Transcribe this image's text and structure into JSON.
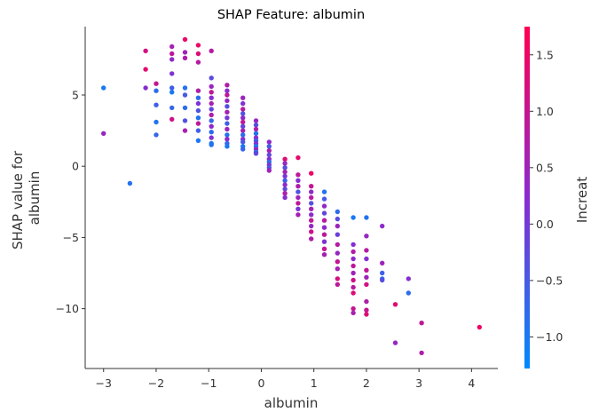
{
  "chart_data": {
    "type": "scatter",
    "title": "SHAP Feature: albumin",
    "xlabel": "albumin",
    "ylabel_lines": [
      "SHAP value for",
      "albumin"
    ],
    "xlim": [
      -3.35,
      4.5
    ],
    "ylim": [
      -14.2,
      9.8
    ],
    "xticks": [
      -3,
      -2,
      -1,
      0,
      1,
      2,
      3,
      4
    ],
    "xtick_labels": [
      "−3",
      "−2",
      "−1",
      "0",
      "1",
      "2",
      "3",
      "4"
    ],
    "yticks": [
      5,
      0,
      -5,
      -10
    ],
    "ytick_labels": [
      "5",
      "0",
      "−5",
      "−10"
    ],
    "grid": false,
    "colorbar": {
      "label": "Increat",
      "range": [
        -1.28,
        1.75
      ],
      "ticks": [
        1.5,
        1.0,
        0.5,
        0.0,
        -0.5,
        -1.0
      ],
      "tick_labels": [
        "1.5",
        "1.0",
        "0.5",
        "0.0",
        "−0.5",
        "−1.0"
      ],
      "color_low": "#008afb",
      "color_mid": "#8a2bd0",
      "color_high": "#ff0052"
    },
    "points": [
      {
        "x": -3.0,
        "y": 5.5,
        "c": -1.0
      },
      {
        "x": -3.0,
        "y": 2.3,
        "c": 0.4
      },
      {
        "x": -2.5,
        "y": -1.2,
        "c": -0.9
      },
      {
        "x": -2.2,
        "y": 8.1,
        "c": 1.2
      },
      {
        "x": -2.2,
        "y": 6.8,
        "c": 1.4
      },
      {
        "x": -2.2,
        "y": 5.5,
        "c": 0.2
      },
      {
        "x": -2.0,
        "y": 5.8,
        "c": 1.0
      },
      {
        "x": -2.0,
        "y": 5.3,
        "c": -0.8
      },
      {
        "x": -2.0,
        "y": 4.3,
        "c": -0.6
      },
      {
        "x": -2.0,
        "y": 3.1,
        "c": -0.9
      },
      {
        "x": -2.0,
        "y": 2.2,
        "c": -0.7
      },
      {
        "x": -1.7,
        "y": 8.4,
        "c": 0.6
      },
      {
        "x": -1.7,
        "y": 7.9,
        "c": 0.9
      },
      {
        "x": -1.7,
        "y": 7.5,
        "c": 0.3
      },
      {
        "x": -1.7,
        "y": 6.5,
        "c": 0.1
      },
      {
        "x": -1.7,
        "y": 5.5,
        "c": -0.6
      },
      {
        "x": -1.7,
        "y": 5.2,
        "c": -1.0
      },
      {
        "x": -1.7,
        "y": 4.1,
        "c": -0.7
      },
      {
        "x": -1.7,
        "y": 3.3,
        "c": 1.1
      },
      {
        "x": -1.45,
        "y": 8.9,
        "c": 1.5
      },
      {
        "x": -1.45,
        "y": 8.0,
        "c": 0.5
      },
      {
        "x": -1.45,
        "y": 7.6,
        "c": 0.7
      },
      {
        "x": -1.45,
        "y": 5.5,
        "c": -0.9
      },
      {
        "x": -1.45,
        "y": 5.0,
        "c": -0.5
      },
      {
        "x": -1.45,
        "y": 4.1,
        "c": -0.8
      },
      {
        "x": -1.45,
        "y": 3.2,
        "c": -0.4
      },
      {
        "x": -1.45,
        "y": 2.5,
        "c": 0.6
      },
      {
        "x": -1.2,
        "y": 8.5,
        "c": 1.5
      },
      {
        "x": -1.2,
        "y": 7.9,
        "c": 1.3
      },
      {
        "x": -1.2,
        "y": 7.3,
        "c": 0.8
      },
      {
        "x": -1.2,
        "y": 5.3,
        "c": 0.7
      },
      {
        "x": -1.2,
        "y": 4.8,
        "c": -0.8
      },
      {
        "x": -1.2,
        "y": 4.4,
        "c": 0.1
      },
      {
        "x": -1.2,
        "y": 3.9,
        "c": -0.4
      },
      {
        "x": -1.2,
        "y": 3.4,
        "c": -0.9
      },
      {
        "x": -1.2,
        "y": 3.0,
        "c": 0.9
      },
      {
        "x": -1.2,
        "y": 2.5,
        "c": -0.6
      },
      {
        "x": -1.2,
        "y": 1.8,
        "c": -1.0
      },
      {
        "x": -0.95,
        "y": 8.1,
        "c": 0.8
      },
      {
        "x": -0.95,
        "y": 6.2,
        "c": -0.3
      },
      {
        "x": -0.95,
        "y": 5.6,
        "c": 0.4
      },
      {
        "x": -0.95,
        "y": 5.2,
        "c": 0.9
      },
      {
        "x": -0.95,
        "y": 4.8,
        "c": 0.2
      },
      {
        "x": -0.95,
        "y": 4.4,
        "c": 0.6
      },
      {
        "x": -0.95,
        "y": 4.0,
        "c": -0.2
      },
      {
        "x": -0.95,
        "y": 3.6,
        "c": 0.7
      },
      {
        "x": -0.95,
        "y": 3.2,
        "c": -0.7
      },
      {
        "x": -0.95,
        "y": 2.8,
        "c": 0.3
      },
      {
        "x": -0.95,
        "y": 2.4,
        "c": -0.8
      },
      {
        "x": -0.95,
        "y": 2.0,
        "c": 0.1
      },
      {
        "x": -0.95,
        "y": 1.6,
        "c": -1.0
      },
      {
        "x": -0.95,
        "y": 1.5,
        "c": -0.9
      },
      {
        "x": -0.65,
        "y": 5.7,
        "c": 0.7
      },
      {
        "x": -0.65,
        "y": 5.3,
        "c": 0.2
      },
      {
        "x": -0.65,
        "y": 5.0,
        "c": 0.9
      },
      {
        "x": -0.65,
        "y": 4.6,
        "c": 0.4
      },
      {
        "x": -0.65,
        "y": 4.2,
        "c": -0.3
      },
      {
        "x": -0.65,
        "y": 3.8,
        "c": 0.6
      },
      {
        "x": -0.65,
        "y": 3.4,
        "c": 0.0
      },
      {
        "x": -0.65,
        "y": 3.0,
        "c": -0.6
      },
      {
        "x": -0.65,
        "y": 2.6,
        "c": 0.5
      },
      {
        "x": -0.65,
        "y": 2.2,
        "c": -0.9
      },
      {
        "x": -0.65,
        "y": 1.9,
        "c": 0.3
      },
      {
        "x": -0.65,
        "y": 1.6,
        "c": -0.7
      },
      {
        "x": -0.65,
        "y": 1.4,
        "c": -1.0
      },
      {
        "x": -0.35,
        "y": 4.8,
        "c": 0.5
      },
      {
        "x": -0.35,
        "y": 4.4,
        "c": 0.1
      },
      {
        "x": -0.35,
        "y": 4.0,
        "c": 0.8
      },
      {
        "x": -0.35,
        "y": 3.7,
        "c": -0.4
      },
      {
        "x": -0.35,
        "y": 3.4,
        "c": 0.3
      },
      {
        "x": -0.35,
        "y": 3.1,
        "c": 0.9
      },
      {
        "x": -0.35,
        "y": 2.8,
        "c": -0.2
      },
      {
        "x": -0.35,
        "y": 2.5,
        "c": 0.6
      },
      {
        "x": -0.35,
        "y": 2.2,
        "c": -0.8
      },
      {
        "x": -0.35,
        "y": 1.9,
        "c": 0.2
      },
      {
        "x": -0.35,
        "y": 1.7,
        "c": -0.5
      },
      {
        "x": -0.35,
        "y": 1.4,
        "c": -1.0
      },
      {
        "x": -0.35,
        "y": 1.2,
        "c": -0.7
      },
      {
        "x": -0.1,
        "y": 3.2,
        "c": 0.4
      },
      {
        "x": -0.1,
        "y": 2.9,
        "c": -0.3
      },
      {
        "x": -0.1,
        "y": 2.6,
        "c": 0.7
      },
      {
        "x": -0.1,
        "y": 2.3,
        "c": -0.9
      },
      {
        "x": -0.1,
        "y": 2.0,
        "c": 0.3
      },
      {
        "x": -0.1,
        "y": 1.8,
        "c": -0.6
      },
      {
        "x": -0.1,
        "y": 1.6,
        "c": 0.1
      },
      {
        "x": -0.1,
        "y": 1.4,
        "c": -1.0
      },
      {
        "x": -0.1,
        "y": 1.2,
        "c": 0.5
      },
      {
        "x": -0.1,
        "y": 1.0,
        "c": -0.8
      },
      {
        "x": -0.1,
        "y": 0.9,
        "c": -0.2
      },
      {
        "x": 0.15,
        "y": 1.7,
        "c": 0.3
      },
      {
        "x": 0.15,
        "y": 1.4,
        "c": -0.5
      },
      {
        "x": 0.15,
        "y": 1.1,
        "c": 0.6
      },
      {
        "x": 0.15,
        "y": 0.8,
        "c": -0.2
      },
      {
        "x": 0.15,
        "y": 0.5,
        "c": 0.2
      },
      {
        "x": 0.15,
        "y": 0.3,
        "c": -0.8
      },
      {
        "x": 0.15,
        "y": 0.1,
        "c": 0.0
      },
      {
        "x": 0.15,
        "y": -0.1,
        "c": -0.4
      },
      {
        "x": 0.15,
        "y": -0.3,
        "c": 0.5
      },
      {
        "x": 0.45,
        "y": 0.5,
        "c": 1.3
      },
      {
        "x": 0.45,
        "y": 0.2,
        "c": 0.4
      },
      {
        "x": 0.45,
        "y": -0.1,
        "c": -0.3
      },
      {
        "x": 0.45,
        "y": -0.4,
        "c": 0.6
      },
      {
        "x": 0.45,
        "y": -0.7,
        "c": 0.1
      },
      {
        "x": 0.45,
        "y": -1.0,
        "c": -0.6
      },
      {
        "x": 0.45,
        "y": -1.3,
        "c": 0.3
      },
      {
        "x": 0.45,
        "y": -1.6,
        "c": -0.2
      },
      {
        "x": 0.45,
        "y": -1.9,
        "c": 0.7
      },
      {
        "x": 0.45,
        "y": -2.2,
        "c": 0.2
      },
      {
        "x": 0.7,
        "y": 0.6,
        "c": 1.4
      },
      {
        "x": 0.7,
        "y": -0.6,
        "c": 0.9
      },
      {
        "x": 0.7,
        "y": -1.0,
        "c": 0.2
      },
      {
        "x": 0.7,
        "y": -1.4,
        "c": 0.7
      },
      {
        "x": 0.7,
        "y": -1.8,
        "c": -0.4
      },
      {
        "x": 0.7,
        "y": -2.2,
        "c": 0.5
      },
      {
        "x": 0.7,
        "y": -2.6,
        "c": 0.9
      },
      {
        "x": 0.7,
        "y": -3.0,
        "c": 0.1
      },
      {
        "x": 0.7,
        "y": -3.4,
        "c": 0.6
      },
      {
        "x": 0.95,
        "y": -0.5,
        "c": 1.5
      },
      {
        "x": 0.95,
        "y": -1.4,
        "c": 1.0
      },
      {
        "x": 0.95,
        "y": -1.8,
        "c": 0.3
      },
      {
        "x": 0.95,
        "y": -2.2,
        "c": 0.8
      },
      {
        "x": 0.95,
        "y": -2.6,
        "c": -0.3
      },
      {
        "x": 0.95,
        "y": -3.0,
        "c": 0.6
      },
      {
        "x": 0.95,
        "y": -3.4,
        "c": 0.2
      },
      {
        "x": 0.95,
        "y": -3.8,
        "c": 0.9
      },
      {
        "x": 0.95,
        "y": -4.2,
        "c": 0.4
      },
      {
        "x": 0.95,
        "y": -4.6,
        "c": 1.1
      },
      {
        "x": 0.95,
        "y": -5.1,
        "c": 0.7
      },
      {
        "x": 1.2,
        "y": -1.8,
        "c": -0.9
      },
      {
        "x": 1.2,
        "y": -2.3,
        "c": -0.5
      },
      {
        "x": 1.2,
        "y": -2.8,
        "c": 0.4
      },
      {
        "x": 1.2,
        "y": -3.3,
        "c": -0.2
      },
      {
        "x": 1.2,
        "y": -3.8,
        "c": 0.8
      },
      {
        "x": 1.2,
        "y": -4.3,
        "c": 0.3
      },
      {
        "x": 1.2,
        "y": -4.8,
        "c": 0.9
      },
      {
        "x": 1.2,
        "y": -5.3,
        "c": 0.1
      },
      {
        "x": 1.2,
        "y": -5.8,
        "c": 1.0
      },
      {
        "x": 1.2,
        "y": -6.2,
        "c": 0.6
      },
      {
        "x": 1.45,
        "y": -3.2,
        "c": -0.8
      },
      {
        "x": 1.45,
        "y": -3.7,
        "c": -0.3
      },
      {
        "x": 1.45,
        "y": -4.2,
        "c": 0.5
      },
      {
        "x": 1.45,
        "y": -4.8,
        "c": -0.1
      },
      {
        "x": 1.45,
        "y": -5.5,
        "c": 0.8
      },
      {
        "x": 1.45,
        "y": -6.1,
        "c": 0.4
      },
      {
        "x": 1.45,
        "y": -6.7,
        "c": 1.0
      },
      {
        "x": 1.45,
        "y": -7.2,
        "c": 0.6
      },
      {
        "x": 1.45,
        "y": -7.9,
        "c": 1.2
      },
      {
        "x": 1.45,
        "y": -8.3,
        "c": 0.9
      },
      {
        "x": 1.75,
        "y": -3.6,
        "c": -1.0
      },
      {
        "x": 1.75,
        "y": -5.5,
        "c": 0.2
      },
      {
        "x": 1.75,
        "y": -6.0,
        "c": 0.7
      },
      {
        "x": 1.75,
        "y": -6.5,
        "c": 0.3
      },
      {
        "x": 1.75,
        "y": -7.0,
        "c": 0.9
      },
      {
        "x": 1.75,
        "y": -7.5,
        "c": 0.5
      },
      {
        "x": 1.75,
        "y": -8.0,
        "c": 1.1
      },
      {
        "x": 1.75,
        "y": -8.5,
        "c": 0.8
      },
      {
        "x": 1.75,
        "y": -8.9,
        "c": 1.3
      },
      {
        "x": 1.75,
        "y": -10.0,
        "c": 1.0
      },
      {
        "x": 1.75,
        "y": -10.3,
        "c": 0.6
      },
      {
        "x": 2.0,
        "y": -3.6,
        "c": -0.9
      },
      {
        "x": 2.0,
        "y": -4.9,
        "c": 0.4
      },
      {
        "x": 2.0,
        "y": -5.9,
        "c": 0.8
      },
      {
        "x": 2.0,
        "y": -6.5,
        "c": 0.2
      },
      {
        "x": 2.0,
        "y": -7.3,
        "c": 0.9
      },
      {
        "x": 2.0,
        "y": -7.8,
        "c": 0.5
      },
      {
        "x": 2.0,
        "y": -8.3,
        "c": 1.2
      },
      {
        "x": 2.0,
        "y": -9.5,
        "c": 0.7
      },
      {
        "x": 2.0,
        "y": -10.1,
        "c": 1.0
      },
      {
        "x": 2.0,
        "y": -10.4,
        "c": 1.3
      },
      {
        "x": 2.3,
        "y": -4.2,
        "c": 0.3
      },
      {
        "x": 2.3,
        "y": -6.8,
        "c": 0.5
      },
      {
        "x": 2.3,
        "y": -7.5,
        "c": -0.6
      },
      {
        "x": 2.3,
        "y": -7.9,
        "c": -0.9
      },
      {
        "x": 2.3,
        "y": -8.0,
        "c": -0.3
      },
      {
        "x": 2.55,
        "y": -9.7,
        "c": 1.4
      },
      {
        "x": 2.55,
        "y": -12.4,
        "c": 0.4
      },
      {
        "x": 2.8,
        "y": -7.9,
        "c": 0.2
      },
      {
        "x": 2.8,
        "y": -8.9,
        "c": -0.8
      },
      {
        "x": 3.05,
        "y": -11.0,
        "c": 0.9
      },
      {
        "x": 3.05,
        "y": -13.1,
        "c": 0.7
      },
      {
        "x": 4.15,
        "y": -11.3,
        "c": 1.5
      }
    ]
  }
}
